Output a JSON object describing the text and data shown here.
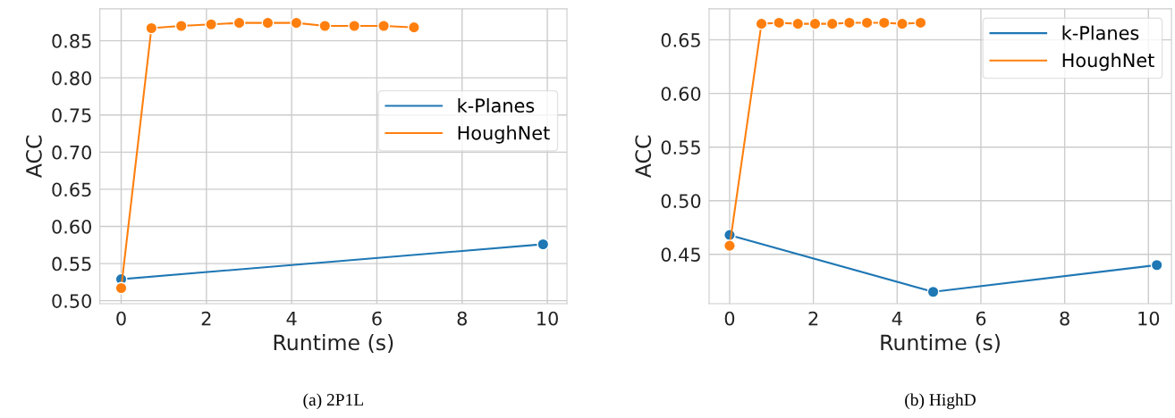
{
  "chart_data": [
    {
      "type": "line",
      "xlabel": "Runtime (s)",
      "ylabel": "ACC",
      "annotations": [
        "(a) 2P1L"
      ],
      "xlim": [
        -0.5,
        10.46
      ],
      "ylim": [
        0.496,
        0.893
      ],
      "xticks": [
        0,
        2,
        4,
        6,
        8,
        10
      ],
      "yticks": [
        {
          "value": 0.5,
          "label": "0.50"
        },
        0.55,
        {
          "value": 0.6,
          "label": "0.60"
        },
        0.65,
        {
          "value": 0.7,
          "label": "0.70"
        },
        0.75,
        {
          "value": 0.8,
          "label": "0.80"
        },
        0.85
      ],
      "grid": true,
      "legend": "center right",
      "marker": "circle",
      "line_style": "solid",
      "series": [
        {
          "name": "k-Planes",
          "color": "#1f77b4",
          "x": [
            0,
            9.9
          ],
          "values": [
            0.529,
            0.576
          ]
        },
        {
          "name": "HoughNet",
          "color": "#ff7f0e",
          "x": [
            0,
            0.71,
            1.41,
            2.11,
            2.77,
            3.44,
            4.11,
            4.78,
            5.47,
            6.16,
            6.87
          ],
          "values": [
            0.517,
            0.867,
            0.87,
            0.872,
            0.874,
            0.874,
            0.874,
            0.87,
            0.87,
            0.87,
            0.868
          ]
        }
      ]
    },
    {
      "type": "line",
      "xlabel": "Runtime (s)",
      "ylabel": "ACC",
      "annotations": [
        "(b) HighD"
      ],
      "xlim": [
        -0.49,
        10.55
      ],
      "ylim": [
        0.404,
        0.679
      ],
      "xticks": [
        0,
        2,
        4,
        6,
        8,
        10
      ],
      "yticks": [
        0.45,
        {
          "value": 0.5,
          "label": "0.50"
        },
        0.55,
        {
          "value": 0.6,
          "label": "0.60"
        },
        0.65
      ],
      "grid": true,
      "legend": "top right",
      "marker": "circle",
      "line_style": "solid",
      "series": [
        {
          "name": "k-Planes",
          "color": "#1f77b4",
          "x": [
            0,
            4.86,
            10.2
          ],
          "values": [
            0.468,
            0.415,
            0.44
          ]
        },
        {
          "name": "HoughNet",
          "color": "#ff7f0e",
          "x": [
            0,
            0.76,
            1.18,
            1.63,
            2.04,
            2.45,
            2.86,
            3.28,
            3.69,
            4.12,
            4.56
          ],
          "values": [
            0.458,
            0.665,
            0.666,
            0.665,
            0.665,
            0.665,
            0.666,
            0.666,
            0.666,
            0.665,
            0.666
          ]
        }
      ]
    }
  ]
}
